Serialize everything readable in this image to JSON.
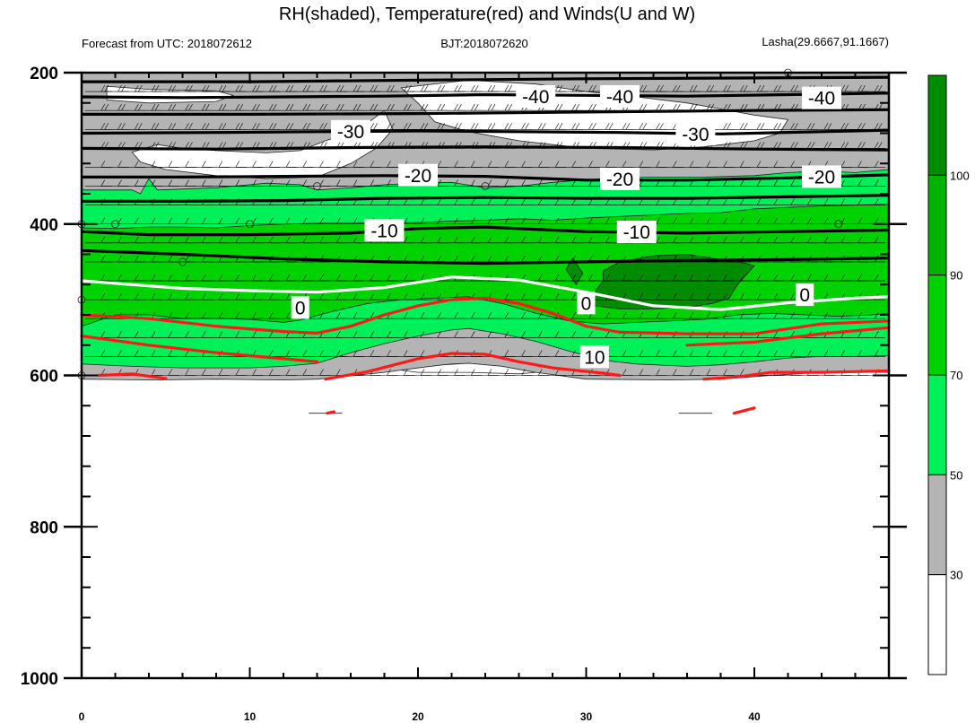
{
  "title": "RH(shaded), Temperature(red) and Winds(U and W)",
  "subtitle_left": "Forecast from UTC: 2018072612",
  "subtitle_center": "BJT:2018072620",
  "subtitle_right": "Lasha(29.6667,91.1667)",
  "colors": {
    "rh_bins": [
      "#ffffff",
      "#b4b4b4",
      "#00f05a",
      "#00d200",
      "#00b400",
      "#008c00"
    ],
    "temperature": "#ff1a1a",
    "isotherm_cold": "#000000",
    "freezing_line": "#ffffff",
    "wind_barbs": "#000000"
  },
  "chart_data": {
    "type": "contour",
    "xlabel": "",
    "ylabel": "",
    "x_ticks": [
      0,
      10,
      20,
      30,
      40
    ],
    "xlim": [
      0,
      48
    ],
    "y_ticks": [
      200,
      400,
      600,
      800,
      1000
    ],
    "ylim": [
      200,
      1000
    ],
    "y_reversed": true,
    "colorbar": {
      "label_values": [
        30,
        50,
        70,
        90,
        100
      ],
      "bins": [
        "<30",
        "30-50",
        "50-70",
        "70-90",
        "90-100",
        ">100"
      ]
    },
    "rh_regions": [
      {
        "bin": "30-50",
        "x": [
          0,
          48
        ],
        "p_top": 200,
        "p_bottom": 605
      },
      {
        "bin": "50-70",
        "x": [
          0,
          48
        ],
        "p_top_approx": 350,
        "p_bottom_approx": 590
      },
      {
        "bin": "70-90",
        "x": [
          0,
          48
        ],
        "p_top_approx": 400,
        "p_bottom_approx": 520
      },
      {
        "bin": "90-100",
        "x": [
          31,
          39
        ],
        "p_top_approx": 440,
        "p_bottom_approx": 510
      }
    ],
    "isotherms": [
      {
        "label": "-40",
        "p": 230
      },
      {
        "label": "-30",
        "p": 275
      },
      {
        "label": "-20",
        "p": 340
      },
      {
        "label": "-10",
        "p": 410
      },
      {
        "label": "0",
        "p": 495
      },
      {
        "label": "10",
        "p": 570
      }
    ],
    "contour_labels": [
      {
        "text": "-40",
        "x": 27.0,
        "p": 232
      },
      {
        "text": "-40",
        "x": 32.0,
        "p": 232
      },
      {
        "text": "-40",
        "x": 44.0,
        "p": 234
      },
      {
        "text": "-30",
        "x": 16.0,
        "p": 278
      },
      {
        "text": "-30",
        "x": 36.5,
        "p": 282
      },
      {
        "text": "-20",
        "x": 20.0,
        "p": 336
      },
      {
        "text": "-20",
        "x": 32.0,
        "p": 341
      },
      {
        "text": "-20",
        "x": 44.0,
        "p": 338
      },
      {
        "text": "-10",
        "x": 18.0,
        "p": 409
      },
      {
        "text": "-10",
        "x": 33.0,
        "p": 411
      },
      {
        "text": "0",
        "x": 13.0,
        "p": 511
      },
      {
        "text": "0",
        "x": 30.0,
        "p": 505
      },
      {
        "text": "0",
        "x": 43.0,
        "p": 494
      },
      {
        "text": "10",
        "x": 30.5,
        "p": 576
      }
    ]
  }
}
